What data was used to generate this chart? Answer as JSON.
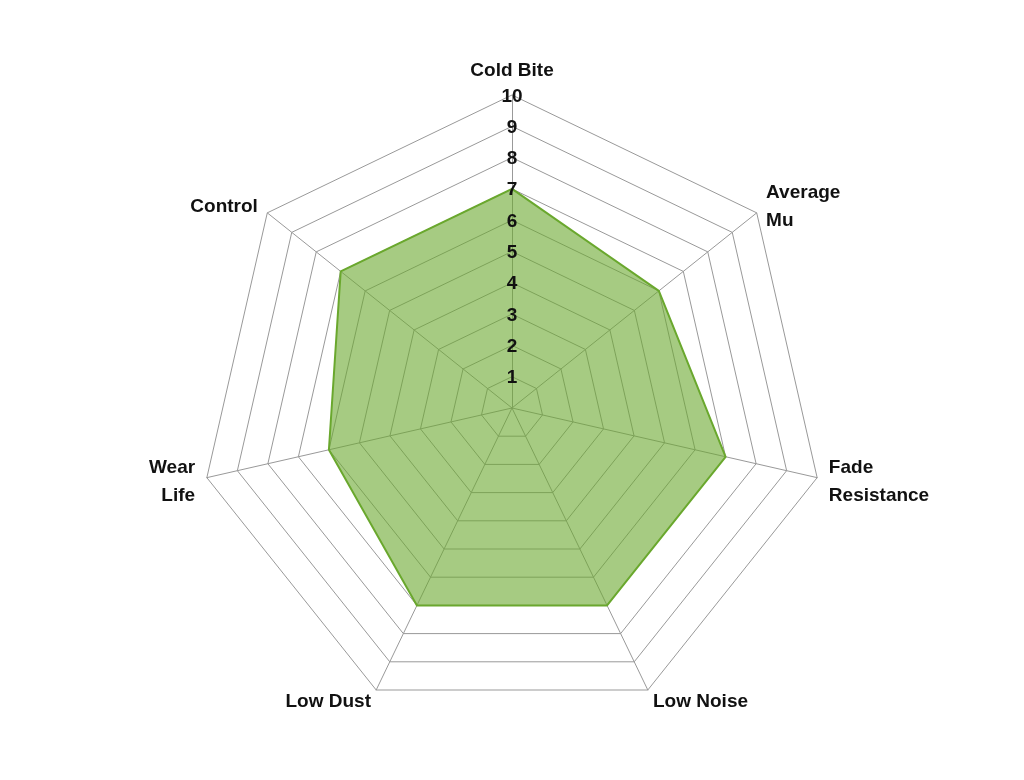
{
  "chart_data": {
    "type": "radar",
    "categories": [
      "Cold Bite",
      "Average\nMu",
      "Fade\nResistance",
      "Low Noise",
      "Low Dust",
      "Wear\nLife",
      "Control"
    ],
    "series": [
      {
        "color": "#6aa82e",
        "values": [
          7,
          6,
          7,
          7,
          7,
          6,
          7
        ]
      }
    ],
    "ylim": [
      0,
      10
    ],
    "yticks": [
      1,
      2,
      3,
      4,
      5,
      6,
      7,
      8,
      9,
      10
    ],
    "grid": true,
    "marker": "none"
  }
}
